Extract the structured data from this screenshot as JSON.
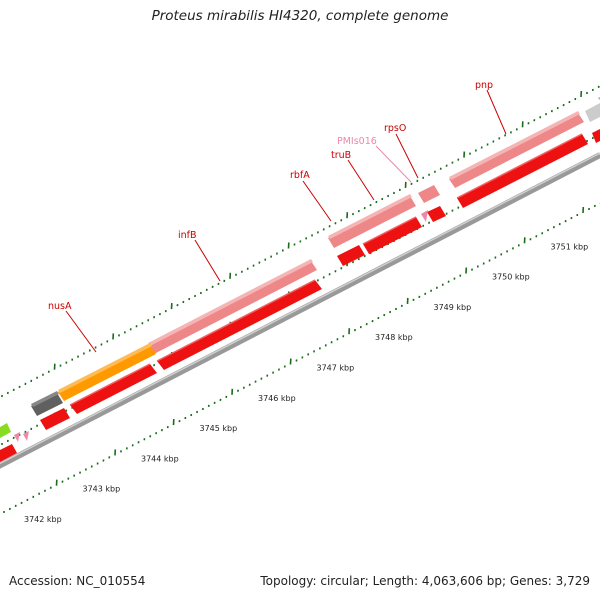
{
  "title": "Proteus mirabilis HI4320, complete genome",
  "footer": {
    "accession": "Accession: NC_010554",
    "summary": "Topology: circular; Length: 4,063,606 bp; Genes: 3,729"
  },
  "colors": {
    "gene_label": "#cc0000",
    "pseudo_label": "#ee88aa",
    "cds_forward": "#ee8888",
    "cds_reverse": "#ee1111",
    "rrna": "#ff9900",
    "trna": "#606060",
    "tick": "#1a6b1a",
    "backbone": "#999999"
  },
  "scale_labels": [
    "3742 kbp",
    "3743 kbp",
    "3744 kbp",
    "3745 kbp",
    "3746 kbp",
    "3747 kbp",
    "3748 kbp",
    "3749 kbp",
    "3750 kbp",
    "3751 kbp"
  ],
  "gene_labels": {
    "nusA": "nusA",
    "infB": "infB",
    "rbfA": "rbfA",
    "truB": "truB",
    "pmls016": "PMIs016",
    "rpsO": "rpsO",
    "pnp": "pnp"
  }
}
